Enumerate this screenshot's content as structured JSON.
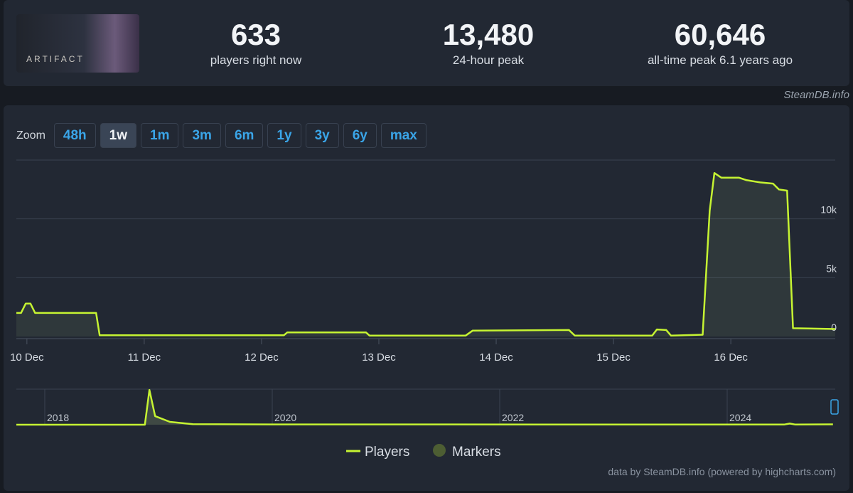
{
  "header": {
    "logo_text": "ARTIFACT",
    "stats": [
      {
        "value": "633",
        "label": "players right now"
      },
      {
        "value": "13,480",
        "label": "24-hour peak"
      },
      {
        "value": "60,646",
        "label": "all-time peak 6.1 years ago"
      }
    ],
    "source": "SteamDB.info"
  },
  "zoom": {
    "label": "Zoom",
    "buttons": [
      "48h",
      "1w",
      "1m",
      "3m",
      "6m",
      "1y",
      "3y",
      "6y",
      "max"
    ],
    "active": 1
  },
  "chart_data": {
    "type": "line",
    "x": [
      9.91,
      9.95,
      9.99,
      10.03,
      10.07,
      10.59,
      10.62,
      12.19,
      12.22,
      12.68,
      12.89,
      12.92,
      13.74,
      13.8,
      14.62,
      14.67,
      15.33,
      15.37,
      15.45,
      15.49,
      15.76,
      15.82,
      15.86,
      15.92,
      16.07,
      16.13,
      16.25,
      16.36,
      16.41,
      16.48,
      16.53,
      16.89
    ],
    "series": [
      {
        "name": "Players",
        "color": "#c6f432",
        "values": [
          2000,
          2000,
          2800,
          2800,
          2000,
          2000,
          100,
          100,
          350,
          350,
          350,
          80,
          80,
          500,
          550,
          80,
          80,
          600,
          550,
          80,
          150,
          10700,
          13900,
          13500,
          13500,
          13300,
          13100,
          13000,
          12500,
          12400,
          700,
          633
        ]
      }
    ],
    "marker_series": {
      "name": "Markers",
      "color": "#4d5e33"
    },
    "xlim": [
      9.91,
      16.89
    ],
    "xticks": [
      {
        "value": 10,
        "label": "10 Dec"
      },
      {
        "value": 11,
        "label": "11 Dec"
      },
      {
        "value": 12,
        "label": "12 Dec"
      },
      {
        "value": 13,
        "label": "13 Dec"
      },
      {
        "value": 14,
        "label": "14 Dec"
      },
      {
        "value": 15,
        "label": "15 Dec"
      },
      {
        "value": 16,
        "label": "16 Dec"
      }
    ],
    "ylim": [
      0,
      15000
    ],
    "yticks": [
      0,
      {
        "value": 5000,
        "label": "5k"
      },
      {
        "value": 10000,
        "label": "10k"
      }
    ],
    "grid": true,
    "credits": "data by SteamDB.info (powered by highcharts.com)"
  },
  "navigator": {
    "x": [
      2017.75,
      2018.88,
      2018.92,
      2018.97,
      2019.1,
      2019.3,
      2020,
      2024.5,
      2024.55,
      2024.6,
      2024.93
    ],
    "values": [
      0,
      0,
      60646,
      15000,
      5000,
      1000,
      500,
      300,
      2000,
      300,
      633
    ],
    "xlim": [
      2017.75,
      2024.95
    ],
    "ylim": [
      0,
      62000
    ],
    "xticks": [
      2018,
      2020,
      2022,
      2024
    ]
  }
}
